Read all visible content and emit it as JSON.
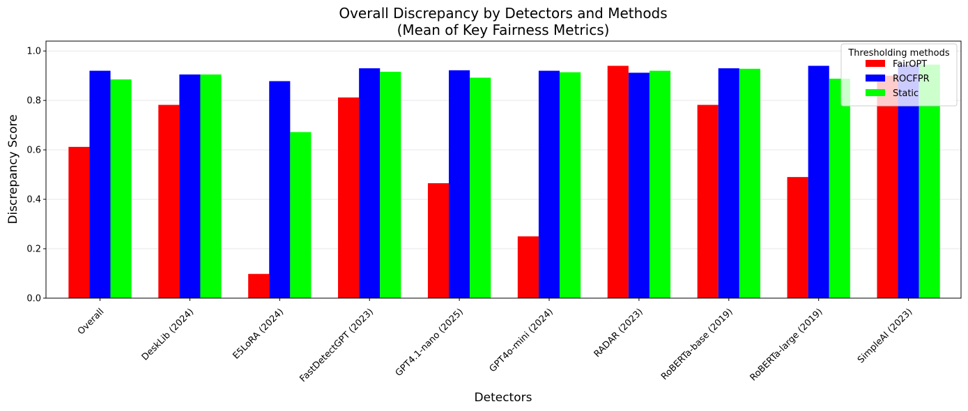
{
  "chart_data": {
    "type": "bar",
    "title": [
      "Overall Discrepancy by Detectors and Methods",
      "(Mean of Key Fairness Metrics)"
    ],
    "xlabel": "Detectors",
    "ylabel": "Discrepancy Score",
    "ylim": [
      0,
      1.04
    ],
    "yticks": [
      0.0,
      0.2,
      0.4,
      0.6,
      0.8,
      1.0
    ],
    "ytick_labels": [
      "0.0",
      "0.2",
      "0.4",
      "0.6",
      "0.8",
      "1.0"
    ],
    "grid": true,
    "categories": [
      "Overall",
      "DeskLib (2024)",
      "E5LoRA (2024)",
      "FastDetectGPT (2023)",
      "GPT4.1-nano (2025)",
      "GPT4o-mini (2024)",
      "RADAR (2023)",
      "RoBERTa-base (2019)",
      "RoBERTa-large (2019)",
      "SimpleAI (2023)"
    ],
    "series": [
      {
        "name": "FairOPT",
        "color": "#ff0000",
        "values": [
          0.612,
          0.782,
          0.098,
          0.812,
          0.465,
          0.25,
          0.94,
          0.782,
          0.49,
          0.9
        ]
      },
      {
        "name": "ROCFPR",
        "color": "#0000ff",
        "values": [
          0.92,
          0.905,
          0.878,
          0.93,
          0.922,
          0.92,
          0.912,
          0.93,
          0.94,
          0.945
        ]
      },
      {
        "name": "Static",
        "color": "#00ff00",
        "values": [
          0.885,
          0.905,
          0.672,
          0.916,
          0.892,
          0.914,
          0.92,
          0.928,
          0.888,
          0.945
        ]
      }
    ],
    "legend": {
      "title": "Thresholding methods",
      "placement": "top-right"
    }
  }
}
